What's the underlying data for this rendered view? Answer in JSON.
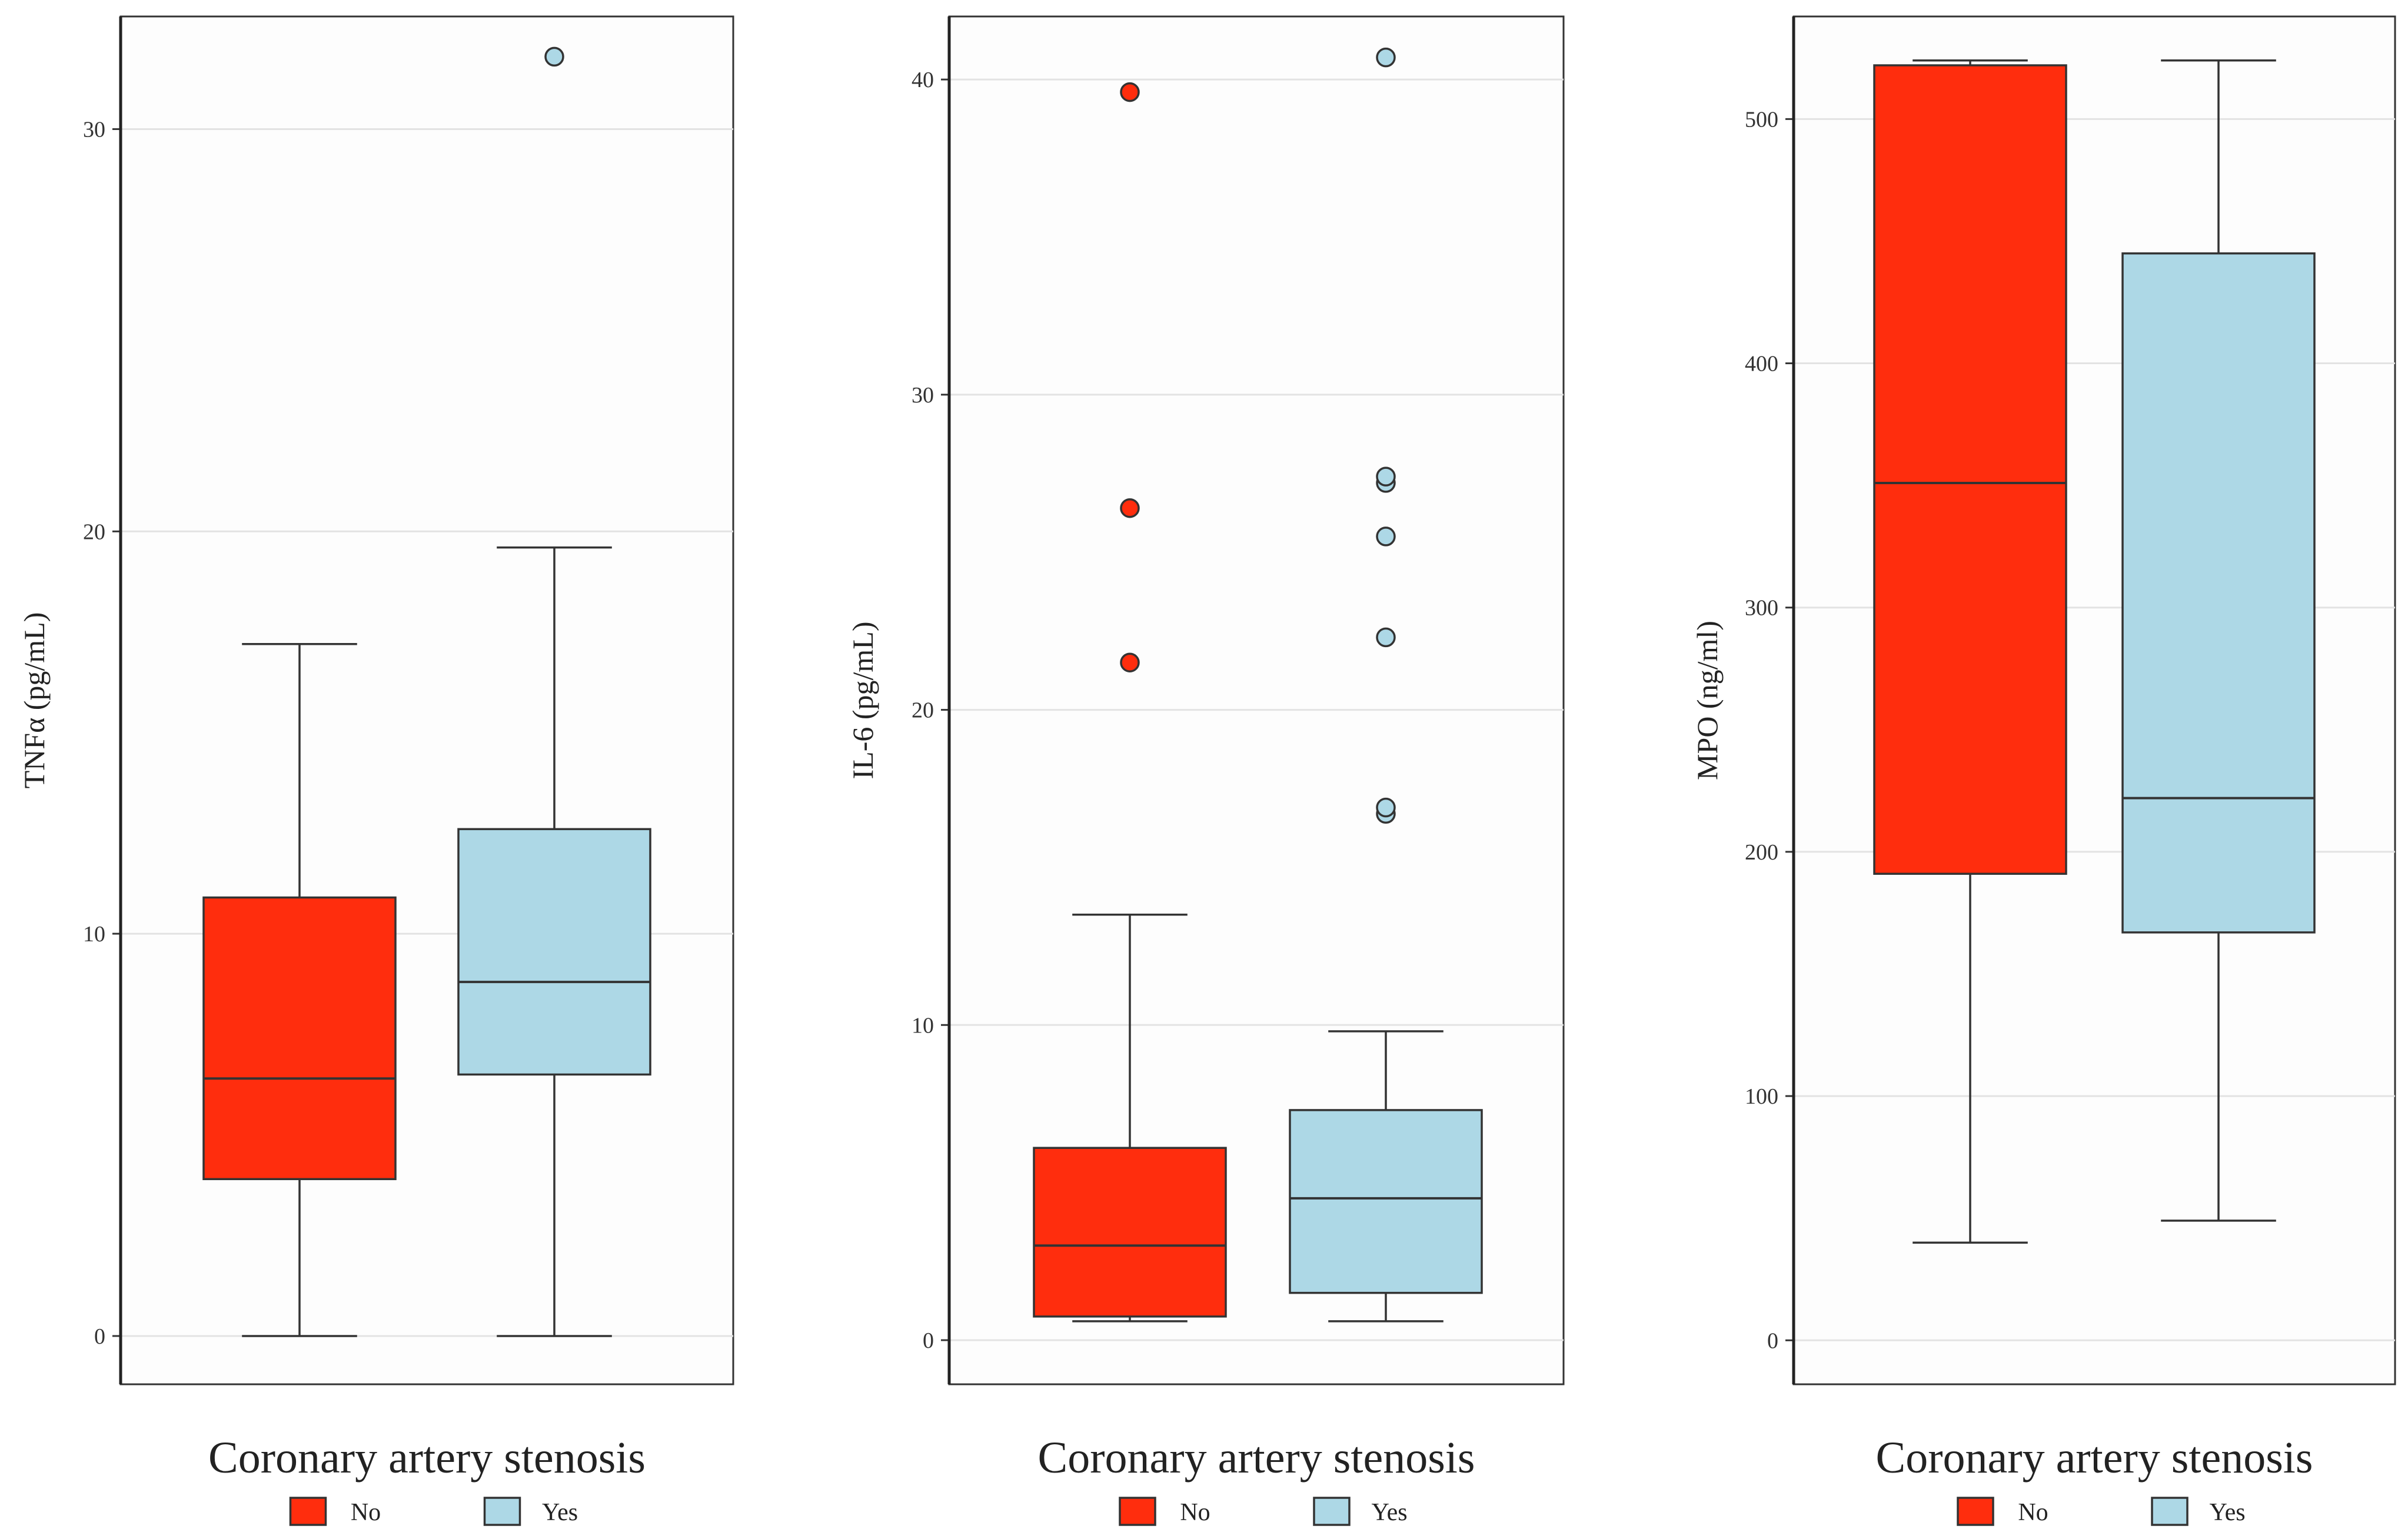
{
  "chart_data": [
    {
      "type": "box",
      "ylabel": "TNFα (pg/mL)",
      "xlabel": "Coronary artery stenosis",
      "ylim": [
        -1.2,
        32.8
      ],
      "yticks": [
        0,
        10,
        20,
        30
      ],
      "grid": true,
      "legend": {
        "position": "bottom",
        "entries": [
          "No",
          "Yes"
        ]
      },
      "groups": [
        {
          "name": "No",
          "color": "#ff2d0d",
          "whisker_low": 0,
          "q1": 3.9,
          "median": 6.4,
          "q3": 10.9,
          "whisker_high": 17.2,
          "outliers": []
        },
        {
          "name": "Yes",
          "color": "#add8e6",
          "whisker_low": 0,
          "q1": 6.5,
          "median": 8.8,
          "q3": 12.6,
          "whisker_high": 19.6,
          "outliers": [
            31.8
          ]
        }
      ]
    },
    {
      "type": "box",
      "ylabel": "IL-6 (pg/mL)",
      "xlabel": "Coronary artery stenosis",
      "ylim": [
        -1.4,
        42.0
      ],
      "yticks": [
        0,
        10,
        20,
        30,
        40
      ],
      "grid": true,
      "legend": {
        "position": "bottom",
        "entries": [
          "No",
          "Yes"
        ]
      },
      "groups": [
        {
          "name": "No",
          "color": "#ff2d0d",
          "whisker_low": 0.6,
          "q1": 0.75,
          "median": 3.0,
          "q3": 6.1,
          "whisker_high": 13.5,
          "outliers": [
            21.5,
            26.4,
            39.6
          ]
        },
        {
          "name": "Yes",
          "color": "#add8e6",
          "whisker_low": 0.6,
          "q1": 1.5,
          "median": 4.5,
          "q3": 7.3,
          "whisker_high": 9.8,
          "outliers": [
            16.7,
            16.9,
            22.3,
            25.5,
            27.2,
            27.4,
            40.7
          ]
        }
      ]
    },
    {
      "type": "box",
      "ylabel": "MPO (ng/ml)",
      "xlabel": "Coronary artery stenosis",
      "ylim": [
        -18,
        542
      ],
      "yticks": [
        0,
        100,
        200,
        300,
        400,
        500
      ],
      "grid": true,
      "legend": {
        "position": "bottom",
        "entries": [
          "No",
          "Yes"
        ]
      },
      "groups": [
        {
          "name": "No",
          "color": "#ff2d0d",
          "whisker_low": 40,
          "q1": 191,
          "median": 351,
          "q3": 522,
          "whisker_high": 524,
          "outliers": []
        },
        {
          "name": "Yes",
          "color": "#add8e6",
          "whisker_low": 49,
          "q1": 167,
          "median": 222,
          "q3": 445,
          "whisker_high": 524,
          "outliers": []
        }
      ]
    }
  ]
}
